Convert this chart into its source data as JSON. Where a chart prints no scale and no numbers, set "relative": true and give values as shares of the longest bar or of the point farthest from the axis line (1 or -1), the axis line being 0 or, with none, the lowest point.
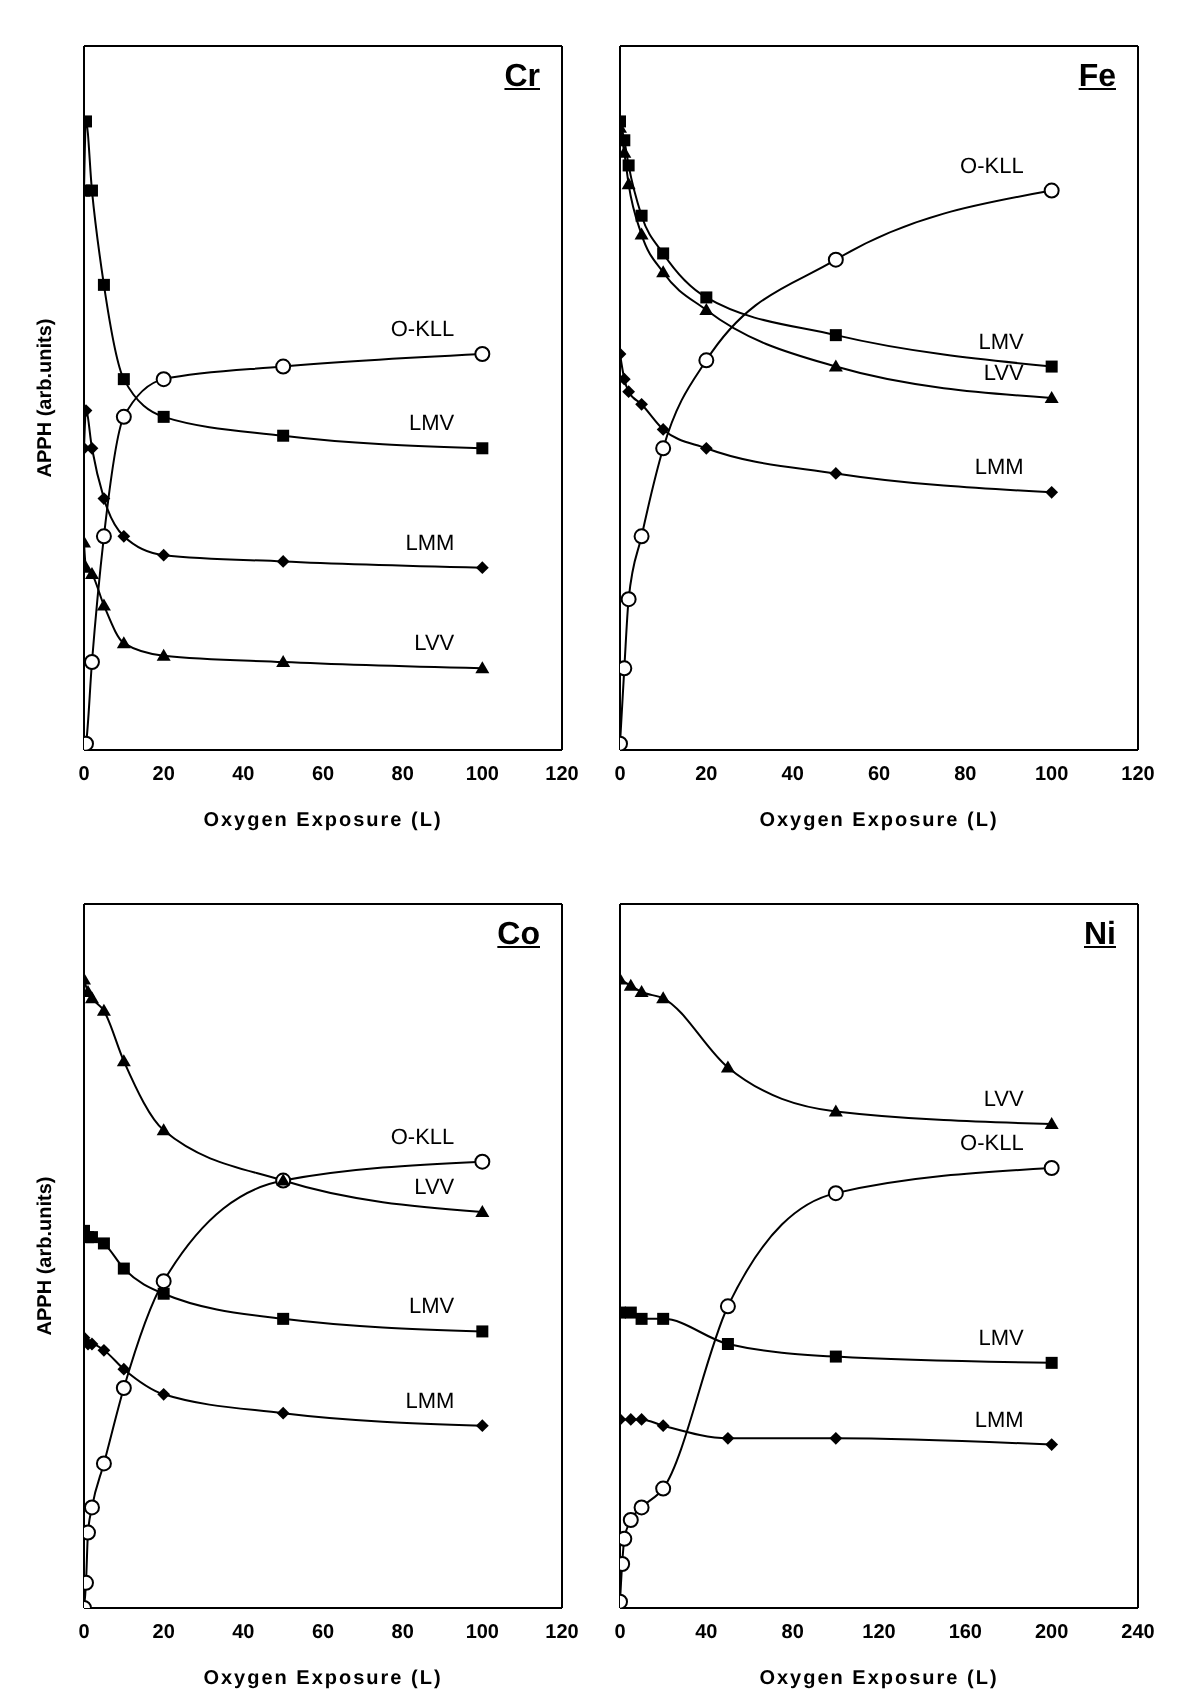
{
  "chart_data": [
    {
      "type": "line",
      "title": "Cr",
      "xlabel": "Oxygen Exposure (L)",
      "ylabel": "APPH (arb.units)",
      "relative": true,
      "xlim": [
        0,
        120
      ],
      "xticks": [
        0,
        20,
        40,
        60,
        80,
        100,
        120
      ],
      "tick_labels": "x",
      "line_style": "solid",
      "series": [
        {
          "name": "O-KLL",
          "color": "#000000",
          "marker": "circle",
          "x": [
            0,
            0.5,
            2,
            5,
            10,
            20,
            50,
            100
          ],
          "values": [
            0,
            0.01,
            0.14,
            0.34,
            0.53,
            0.59,
            0.61,
            0.63
          ]
        },
        {
          "name": "LMV",
          "color": "#000000",
          "marker": "square",
          "x": [
            0,
            0.5,
            2,
            5,
            10,
            20,
            50,
            100
          ],
          "values": [
            0.89,
            1,
            0.89,
            0.74,
            0.59,
            0.53,
            0.5,
            0.48
          ]
        },
        {
          "name": "LMM",
          "color": "#000000",
          "marker": "diamond",
          "x": [
            0,
            0.5,
            2,
            5,
            10,
            20,
            50,
            100
          ],
          "values": [
            0.48,
            0.54,
            0.48,
            0.4,
            0.34,
            0.31,
            0.3,
            0.29
          ]
        },
        {
          "name": "LVV",
          "color": "#000000",
          "marker": "triangle",
          "x": [
            0,
            0.5,
            2,
            5,
            10,
            20,
            50,
            100
          ],
          "values": [
            0.33,
            0.29,
            0.28,
            0.23,
            0.17,
            0.15,
            0.14,
            0.13
          ]
        }
      ]
    },
    {
      "type": "line",
      "title": "Fe",
      "xlabel": "Oxygen Exposure (L)",
      "relative": true,
      "xlim": [
        0,
        120
      ],
      "xticks": [
        0,
        20,
        40,
        60,
        80,
        100,
        120
      ],
      "tick_labels": "x",
      "line_style": "solid",
      "series": [
        {
          "name": "O-KLL",
          "color": "#000000",
          "marker": "circle",
          "x": [
            0,
            1,
            2,
            5,
            10,
            20,
            50,
            100
          ],
          "values": [
            0.01,
            0.13,
            0.24,
            0.34,
            0.48,
            0.62,
            0.78,
            0.89
          ]
        },
        {
          "name": "LMV",
          "color": "#000000",
          "marker": "square",
          "x": [
            0,
            1,
            2,
            5,
            10,
            20,
            50,
            100
          ],
          "values": [
            1,
            0.97,
            0.93,
            0.85,
            0.79,
            0.72,
            0.66,
            0.61
          ]
        },
        {
          "name": "LVV",
          "color": "#000000",
          "marker": "triangle",
          "x": [
            0,
            1,
            2,
            5,
            10,
            20,
            50,
            100
          ],
          "values": [
            0.99,
            0.95,
            0.9,
            0.82,
            0.76,
            0.7,
            0.61,
            0.56
          ]
        },
        {
          "name": "LMM",
          "color": "#000000",
          "marker": "diamond",
          "x": [
            0,
            1,
            2,
            5,
            10,
            20,
            50,
            100
          ],
          "values": [
            0.63,
            0.59,
            0.57,
            0.55,
            0.51,
            0.48,
            0.44,
            0.41
          ]
        }
      ]
    },
    {
      "type": "line",
      "title": "Co",
      "xlabel": "Oxygen Exposure (L)",
      "ylabel": "APPH (arb.units)",
      "relative": true,
      "xlim": [
        0,
        120
      ],
      "xticks": [
        0,
        20,
        40,
        60,
        80,
        100,
        120
      ],
      "tick_labels": "x",
      "line_style": "solid",
      "series": [
        {
          "name": "O-KLL",
          "color": "#000000",
          "marker": "circle",
          "x": [
            0,
            0.5,
            1,
            2,
            5,
            10,
            20,
            50,
            100
          ],
          "values": [
            0,
            0.04,
            0.12,
            0.16,
            0.23,
            0.35,
            0.52,
            0.68,
            0.71
          ]
        },
        {
          "name": "LVV",
          "color": "#000000",
          "marker": "triangle",
          "x": [
            0,
            1,
            2,
            5,
            10,
            20,
            50,
            100
          ],
          "values": [
            1,
            0.98,
            0.97,
            0.95,
            0.87,
            0.76,
            0.68,
            0.63
          ]
        },
        {
          "name": "LMV",
          "color": "#000000",
          "marker": "square",
          "x": [
            0,
            1,
            2,
            5,
            10,
            20,
            50,
            100
          ],
          "values": [
            0.6,
            0.59,
            0.59,
            0.58,
            0.54,
            0.5,
            0.46,
            0.44
          ]
        },
        {
          "name": "LMM",
          "color": "#000000",
          "marker": "diamond",
          "x": [
            0,
            1,
            2,
            5,
            10,
            20,
            50,
            100
          ],
          "values": [
            0.43,
            0.42,
            0.42,
            0.41,
            0.38,
            0.34,
            0.31,
            0.29
          ]
        }
      ]
    },
    {
      "type": "line",
      "title": "Ni",
      "xlabel": "Oxygen Exposure (L)",
      "relative": true,
      "xlim": [
        0,
        240
      ],
      "xticks": [
        0,
        40,
        80,
        120,
        160,
        200,
        240
      ],
      "tick_labels": "x",
      "line_style": "solid",
      "series": [
        {
          "name": "LVV",
          "color": "#000000",
          "marker": "triangle",
          "x": [
            0,
            5,
            10,
            20,
            50,
            100,
            200
          ],
          "values": [
            1,
            0.99,
            0.98,
            0.97,
            0.86,
            0.79,
            0.77
          ]
        },
        {
          "name": "O-KLL",
          "color": "#000000",
          "marker": "circle",
          "x": [
            0,
            1,
            2,
            5,
            10,
            20,
            50,
            100,
            200
          ],
          "values": [
            0.01,
            0.07,
            0.11,
            0.14,
            0.16,
            0.19,
            0.48,
            0.66,
            0.7
          ]
        },
        {
          "name": "LMV",
          "color": "#000000",
          "marker": "square",
          "x": [
            0,
            5,
            10,
            20,
            50,
            100,
            200
          ],
          "values": [
            0.47,
            0.47,
            0.46,
            0.46,
            0.42,
            0.4,
            0.39
          ]
        },
        {
          "name": "LMM",
          "color": "#000000",
          "marker": "diamond",
          "x": [
            0,
            5,
            10,
            20,
            50,
            100,
            200
          ],
          "values": [
            0.3,
            0.3,
            0.3,
            0.29,
            0.27,
            0.27,
            0.26
          ]
        }
      ]
    }
  ]
}
